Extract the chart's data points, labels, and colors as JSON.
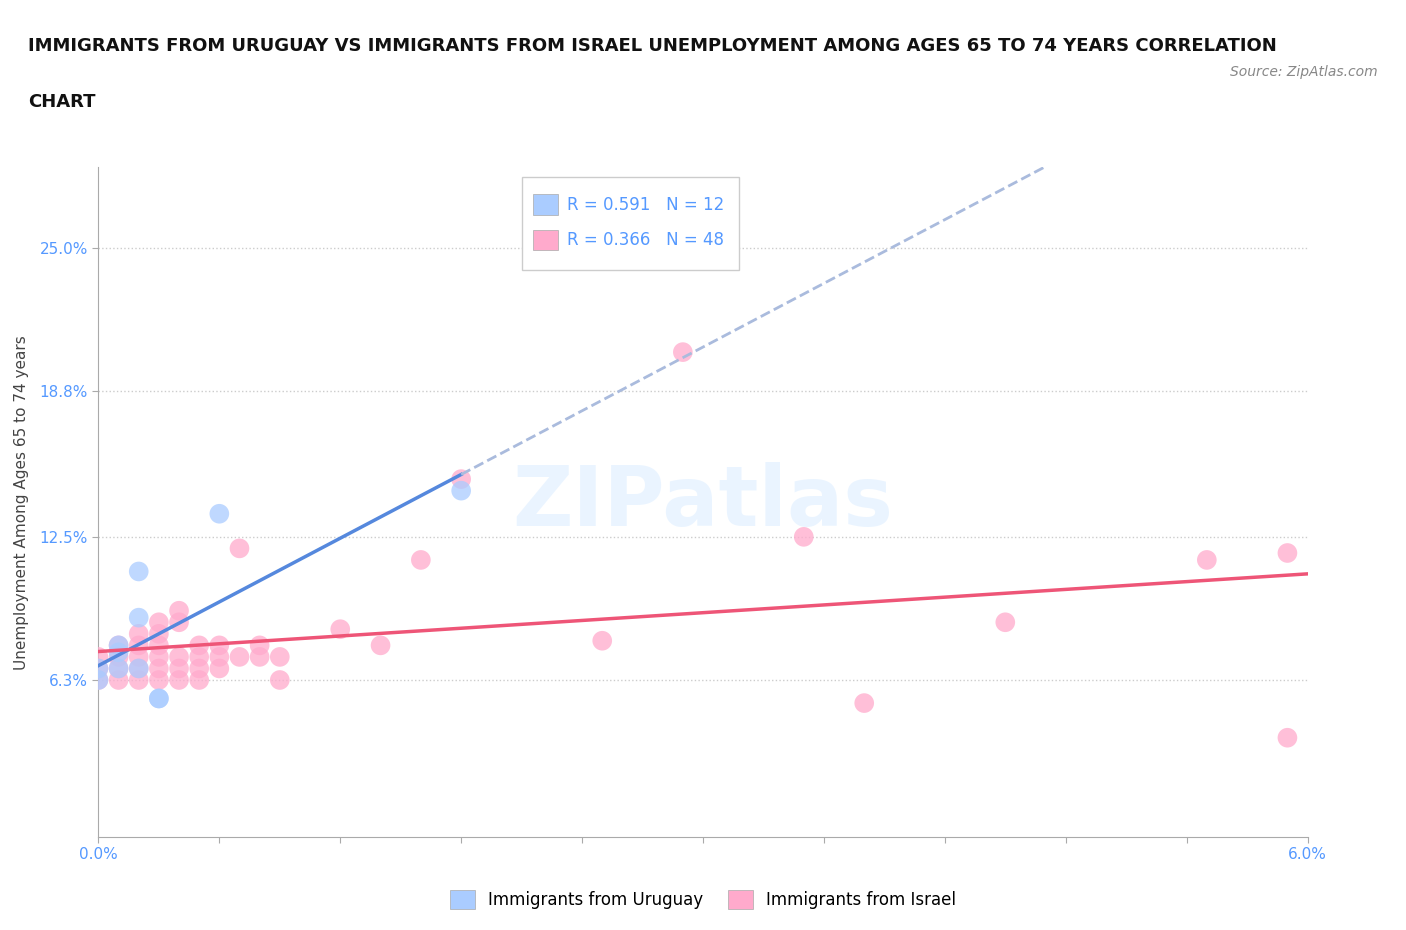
{
  "title_line1": "IMMIGRANTS FROM URUGUAY VS IMMIGRANTS FROM ISRAEL UNEMPLOYMENT AMONG AGES 65 TO 74 YEARS CORRELATION",
  "title_line2": "CHART",
  "source_text": "Source: ZipAtlas.com",
  "ylabel": "Unemployment Among Ages 65 to 74 years",
  "xlim": [
    0.0,
    0.06
  ],
  "ylim": [
    -0.005,
    0.285
  ],
  "xticks": [
    0.0,
    0.006,
    0.012,
    0.018,
    0.024,
    0.03,
    0.036,
    0.042,
    0.048,
    0.054,
    0.06
  ],
  "xticklabels": [
    "0.0%",
    "",
    "",
    "",
    "",
    "",
    "",
    "",
    "",
    "",
    "6.0%"
  ],
  "yticks": [
    0.063,
    0.125,
    0.188,
    0.25
  ],
  "yticklabels": [
    "6.3%",
    "12.5%",
    "18.8%",
    "25.0%"
  ],
  "uruguay_color": "#aaccff",
  "israel_color": "#ffaacc",
  "uruguay_line_color": "#5588dd",
  "uruguay_line_color2": "#aabbdd",
  "israel_line_color": "#ee5577",
  "r_uruguay": "0.591",
  "n_uruguay": "12",
  "r_israel": "0.366",
  "n_israel": "48",
  "watermark": "ZIPatlas",
  "uruguay_points": [
    [
      0.0,
      0.063
    ],
    [
      0.0,
      0.068
    ],
    [
      0.001,
      0.068
    ],
    [
      0.001,
      0.075
    ],
    [
      0.001,
      0.078
    ],
    [
      0.002,
      0.068
    ],
    [
      0.002,
      0.09
    ],
    [
      0.002,
      0.11
    ],
    [
      0.003,
      0.055
    ],
    [
      0.003,
      0.055
    ],
    [
      0.006,
      0.135
    ],
    [
      0.018,
      0.145
    ]
  ],
  "israel_points": [
    [
      0.0,
      0.063
    ],
    [
      0.0,
      0.068
    ],
    [
      0.0,
      0.073
    ],
    [
      0.001,
      0.063
    ],
    [
      0.001,
      0.068
    ],
    [
      0.001,
      0.073
    ],
    [
      0.001,
      0.078
    ],
    [
      0.002,
      0.063
    ],
    [
      0.002,
      0.068
    ],
    [
      0.002,
      0.073
    ],
    [
      0.002,
      0.078
    ],
    [
      0.002,
      0.083
    ],
    [
      0.003,
      0.063
    ],
    [
      0.003,
      0.068
    ],
    [
      0.003,
      0.073
    ],
    [
      0.003,
      0.078
    ],
    [
      0.003,
      0.083
    ],
    [
      0.003,
      0.088
    ],
    [
      0.004,
      0.063
    ],
    [
      0.004,
      0.068
    ],
    [
      0.004,
      0.073
    ],
    [
      0.004,
      0.088
    ],
    [
      0.004,
      0.093
    ],
    [
      0.005,
      0.063
    ],
    [
      0.005,
      0.068
    ],
    [
      0.005,
      0.073
    ],
    [
      0.005,
      0.078
    ],
    [
      0.006,
      0.068
    ],
    [
      0.006,
      0.073
    ],
    [
      0.006,
      0.078
    ],
    [
      0.007,
      0.073
    ],
    [
      0.007,
      0.12
    ],
    [
      0.008,
      0.073
    ],
    [
      0.008,
      0.078
    ],
    [
      0.009,
      0.063
    ],
    [
      0.009,
      0.073
    ],
    [
      0.012,
      0.085
    ],
    [
      0.014,
      0.078
    ],
    [
      0.016,
      0.115
    ],
    [
      0.018,
      0.15
    ],
    [
      0.025,
      0.08
    ],
    [
      0.029,
      0.205
    ],
    [
      0.035,
      0.125
    ],
    [
      0.038,
      0.053
    ],
    [
      0.045,
      0.088
    ],
    [
      0.055,
      0.115
    ],
    [
      0.059,
      0.038
    ],
    [
      0.059,
      0.118
    ]
  ],
  "background_color": "#ffffff",
  "grid_color": "#cccccc",
  "title_fontsize": 13,
  "axis_label_fontsize": 11,
  "tick_fontsize": 11,
  "tick_color": "#5599ff",
  "legend_fontsize": 12
}
